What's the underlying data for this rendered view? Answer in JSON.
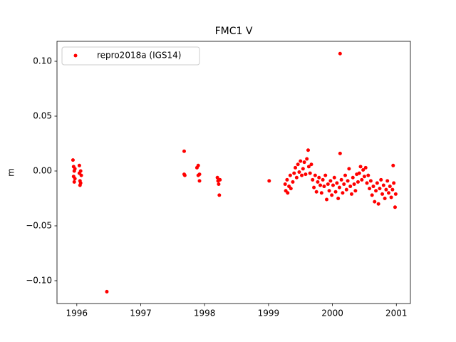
{
  "chart_data": {
    "type": "scatter",
    "title": "FMC1 V",
    "ylabel": "m",
    "x": [
      1995.94,
      1995.95,
      1995.95,
      1995.96,
      1995.96,
      1995.97,
      1995.97,
      1996.04,
      1996.04,
      1996.05,
      1996.05,
      1996.06,
      1996.06,
      1996.07,
      1996.47,
      1997.68,
      1997.68,
      1997.69,
      1997.88,
      1997.9,
      1997.9,
      1997.92,
      1997.92,
      1998.2,
      1998.21,
      1998.22,
      1998.23,
      1998.24,
      1999.01,
      1999.26,
      1999.27,
      1999.29,
      1999.3,
      1999.32,
      1999.34,
      1999.35,
      1999.38,
      1999.4,
      1999.42,
      1999.44,
      1999.46,
      1999.48,
      1999.5,
      1999.52,
      1999.54,
      1999.56,
      1999.58,
      1999.6,
      1999.62,
      1999.63,
      1999.65,
      1999.67,
      1999.69,
      1999.71,
      1999.73,
      1999.75,
      1999.77,
      1999.79,
      1999.81,
      1999.83,
      1999.85,
      1999.87,
      1999.89,
      1999.91,
      1999.93,
      1999.95,
      1999.97,
      1999.99,
      2000.01,
      2000.03,
      2000.05,
      2000.07,
      2000.09,
      2000.11,
      2000.12,
      2000.12,
      2000.14,
      2000.16,
      2000.18,
      2000.2,
      2000.22,
      2000.24,
      2000.26,
      2000.28,
      2000.3,
      2000.32,
      2000.34,
      2000.36,
      2000.38,
      2000.4,
      2000.42,
      2000.44,
      2000.46,
      2000.48,
      2000.5,
      2000.52,
      2000.54,
      2000.56,
      2000.58,
      2000.6,
      2000.62,
      2000.64,
      2000.66,
      2000.68,
      2000.7,
      2000.72,
      2000.74,
      2000.76,
      2000.78,
      2000.8,
      2000.82,
      2000.84,
      2000.86,
      2000.88,
      2000.9,
      2000.92,
      2000.94,
      2000.95,
      2000.96,
      2000.98,
      2000.99
    ],
    "series": [
      {
        "name": "repro2018a (IGS14)",
        "color": "#ff0000",
        "values": [
          0.01,
          0.004,
          -0.005,
          0.0,
          -0.01,
          0.002,
          -0.007,
          0.005,
          -0.002,
          -0.013,
          -0.009,
          0.0,
          -0.011,
          -0.004,
          -0.11,
          0.018,
          -0.003,
          -0.004,
          0.003,
          0.005,
          -0.004,
          -0.009,
          -0.003,
          -0.006,
          -0.009,
          -0.012,
          -0.022,
          -0.008,
          -0.009,
          -0.012,
          -0.018,
          -0.008,
          -0.02,
          -0.014,
          -0.004,
          -0.016,
          -0.01,
          -0.002,
          0.003,
          -0.006,
          0.006,
          -0.001,
          0.009,
          -0.004,
          0.002,
          0.008,
          -0.003,
          0.011,
          0.019,
          0.004,
          -0.002,
          0.006,
          -0.008,
          -0.015,
          -0.004,
          -0.019,
          -0.01,
          -0.006,
          -0.013,
          -0.02,
          -0.008,
          -0.014,
          -0.004,
          -0.026,
          -0.012,
          -0.018,
          -0.009,
          -0.022,
          -0.013,
          -0.006,
          -0.019,
          -0.011,
          -0.025,
          -0.015,
          0.107,
          0.016,
          -0.008,
          -0.02,
          -0.012,
          -0.004,
          -0.017,
          -0.009,
          0.002,
          -0.014,
          -0.021,
          -0.006,
          -0.012,
          -0.018,
          -0.003,
          -0.01,
          -0.002,
          0.004,
          -0.008,
          0.001,
          -0.005,
          0.003,
          -0.011,
          -0.004,
          -0.016,
          -0.009,
          -0.022,
          -0.014,
          -0.028,
          -0.018,
          -0.011,
          -0.03,
          -0.016,
          -0.008,
          -0.021,
          -0.013,
          -0.025,
          -0.017,
          -0.009,
          -0.02,
          -0.014,
          -0.024,
          -0.017,
          0.005,
          -0.011,
          -0.033,
          -0.021
        ]
      }
    ],
    "xlim": [
      1995.69,
      2001.22
    ],
    "xticks": [
      1996,
      1997,
      1998,
      1999,
      2000,
      2001
    ],
    "ylim": [
      -0.1208,
      0.1182
    ],
    "yticks": [
      {
        "value": -0.1,
        "label": "−0.10"
      },
      {
        "value": -0.05,
        "label": "−0.05"
      },
      {
        "value": 0,
        "label": "0.00"
      },
      {
        "value": 0.05,
        "label": "0.05"
      },
      {
        "value": 0.1,
        "label": "0.10"
      }
    ],
    "legend": "upper left",
    "grid": false
  }
}
